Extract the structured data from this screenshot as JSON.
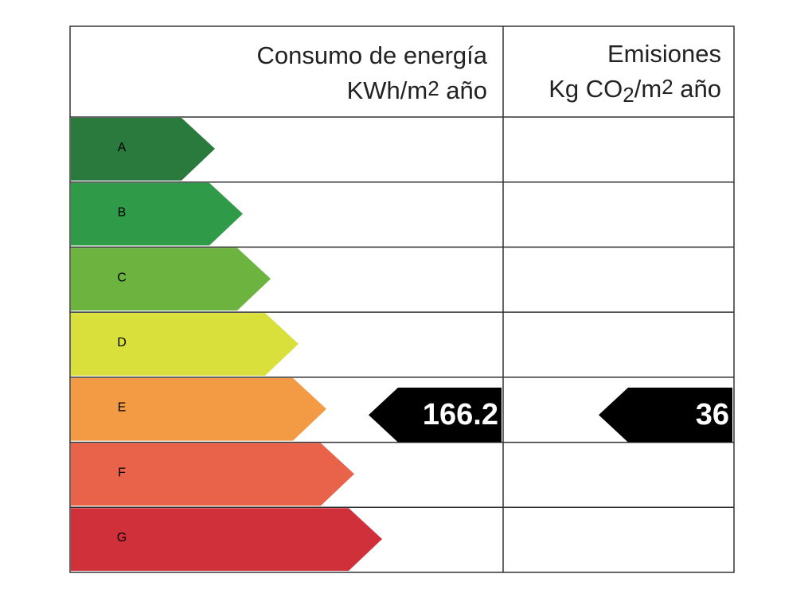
{
  "header": {
    "energy": {
      "line1": "Consumo de energía",
      "line2": [
        "KWh/m",
        "2",
        " año"
      ]
    },
    "emissions": {
      "line1": "Emisiones",
      "line2": [
        "Kg CO",
        "2",
        "/m",
        "2",
        " año"
      ]
    }
  },
  "ratings": [
    {
      "letter": "A",
      "color": "#2a7a3e"
    },
    {
      "letter": "B",
      "color": "#2f9a47"
    },
    {
      "letter": "C",
      "color": "#6cb33f"
    },
    {
      "letter": "D",
      "color": "#d9df3b"
    },
    {
      "letter": "E",
      "color": "#f39a45"
    },
    {
      "letter": "F",
      "color": "#e9634b"
    },
    {
      "letter": "G",
      "color": "#d0303a"
    }
  ],
  "energy_indicator": {
    "rating": "E",
    "value": 166.2
  },
  "emissions_indicator": {
    "rating": "E",
    "value": 36
  }
}
